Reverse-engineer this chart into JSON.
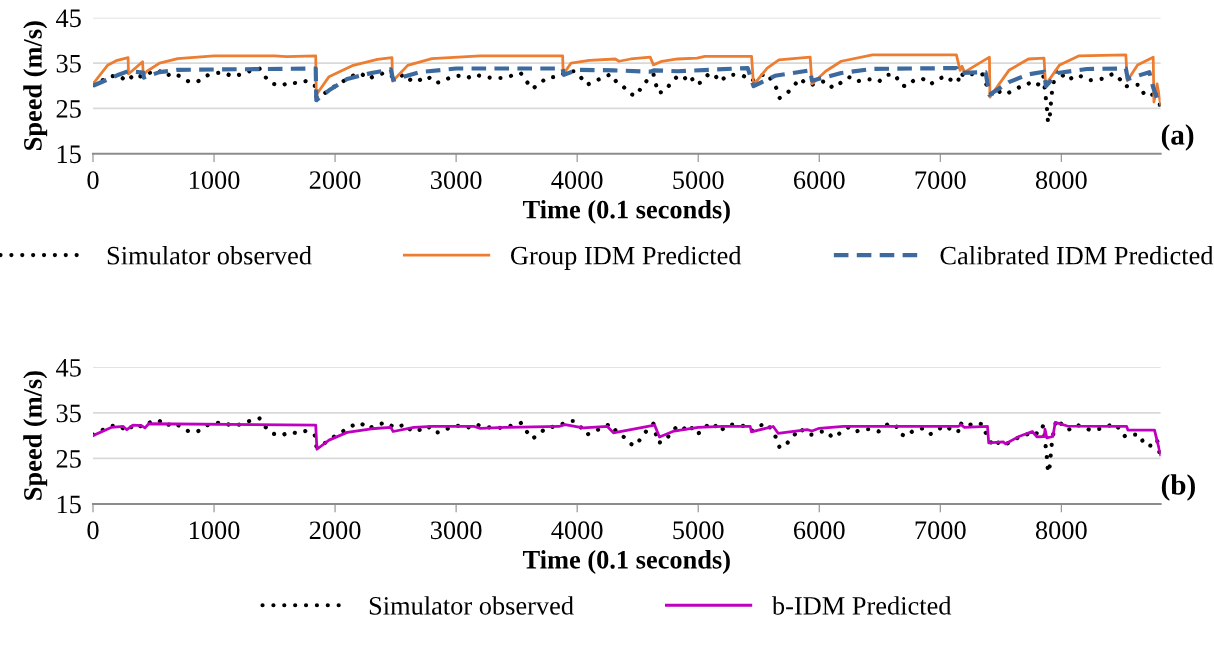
{
  "chart_data": [
    {
      "type": "line",
      "xlabel": "Time (0.1 seconds)",
      "ylabel": "Speed (m/s)",
      "xlim": [
        0,
        8820
      ],
      "xticks": [
        0,
        1000,
        2000,
        3000,
        4000,
        5000,
        6000,
        7000,
        8000
      ],
      "ylim": [
        15,
        45
      ],
      "yticks": [
        15,
        25,
        35,
        45
      ],
      "grid": "y",
      "legend": "bottom",
      "annotations": [
        "(a)"
      ],
      "series": [
        {
          "name": "Simulator observed",
          "color": "#000000",
          "line_style": "dotted",
          "x": [
            0,
            70,
            145,
            218,
            277,
            349,
            407,
            472,
            544,
            593,
            668,
            730,
            798,
            870,
            935,
            1016,
            1081,
            1147,
            1228,
            1300,
            1375,
            1417,
            1476,
            1554,
            1629,
            1691,
            1756,
            1831,
            1847,
            1912,
            1993,
            2068,
            2134,
            2212,
            2270,
            2342,
            2417,
            2498,
            2580,
            2635,
            2694,
            2765,
            2824,
            2889,
            2954,
            3029,
            3091,
            3160,
            3231,
            3319,
            3394,
            3469,
            3534,
            3583,
            3632,
            3691,
            3762,
            3834,
            3925,
            3980,
            4029,
            4078,
            4153,
            4225,
            4282,
            4330,
            4385,
            4437,
            4485,
            4533,
            4578,
            4630,
            4668,
            4726,
            4771,
            4829,
            4877,
            4932,
            4974,
            5021,
            5080,
            5128,
            5177,
            5248,
            5312,
            5377,
            5441,
            5499,
            5570,
            5650,
            5673,
            5737,
            5789,
            5844,
            5892,
            5940,
            6005,
            6060,
            6111,
            6175,
            6246,
            6304,
            6375,
            6433,
            6491,
            6562,
            6627,
            6665,
            6713,
            6778,
            6852,
            6917,
            6981,
            7045,
            7100,
            7148,
            7158,
            7213,
            7277,
            7348,
            7380,
            7438,
            7496,
            7551,
            7606,
            7657,
            7696,
            7760,
            7809,
            7851,
            7870,
            7880,
            7890,
            7905,
            7915,
            7925,
            7960,
            8002,
            8057,
            8121,
            8186,
            8237,
            8292,
            8356,
            8430,
            8485,
            8527,
            8582,
            8646,
            8688,
            8743,
            8791,
            8814
          ],
          "values": [
            30.2,
            31.1,
            32.1,
            32.2,
            31.0,
            32.6,
            31.9,
            32.9,
            33.4,
            32.1,
            32.8,
            31.9,
            30.8,
            31.0,
            32.2,
            32.8,
            32.9,
            32.1,
            32.5,
            33.3,
            33.8,
            32.1,
            30.5,
            30.0,
            30.8,
            30.5,
            31.0,
            30.2,
            27.4,
            28.3,
            29.8,
            31.0,
            32.1,
            32.8,
            31.5,
            32.3,
            32.9,
            31.7,
            32.5,
            30.9,
            31.2,
            32.1,
            30.6,
            30.9,
            31.9,
            32.2,
            31.7,
            32.5,
            31.9,
            31.7,
            31.7,
            32.3,
            32.8,
            30.9,
            29.3,
            30.6,
            31.9,
            31.9,
            33.2,
            33.2,
            31.9,
            30.2,
            31.0,
            32.1,
            32.5,
            30.6,
            29.7,
            28.2,
            27.8,
            29.7,
            31.2,
            32.6,
            28.4,
            28.8,
            30.5,
            32.1,
            31.4,
            32.4,
            30.3,
            30.7,
            32.4,
            32.7,
            30.9,
            32.4,
            32.4,
            32.1,
            31.0,
            32.1,
            32.7,
            29.3,
            27.3,
            28.4,
            30.0,
            31.6,
            30.3,
            30.2,
            30.8,
            31.0,
            29.5,
            30.6,
            31.9,
            30.9,
            31.4,
            31.4,
            30.9,
            32.4,
            32.5,
            30.5,
            29.8,
            31.1,
            31.6,
            30.3,
            31.4,
            32.2,
            31.0,
            30.8,
            32.9,
            31.9,
            32.8,
            32.5,
            30.3,
            27.6,
            28.8,
            28.2,
            29.1,
            29.7,
            29.9,
            31.0,
            30.3,
            32.2,
            27.8,
            25.4,
            21.9,
            23.4,
            26.5,
            29.3,
            33.6,
            32.5,
            31.2,
            32.4,
            31.9,
            31.2,
            31.4,
            31.6,
            32.7,
            31.4,
            29.8,
            30.2,
            30.2,
            27.9,
            27.8,
            29.1,
            25.8
          ]
        },
        {
          "name": "Group IDM Predicted",
          "color": "#ed7d31",
          "line_style": "solid",
          "x": [
            0,
            120,
            200,
            290,
            293,
            410,
            415,
            446,
            550,
            700,
            1000,
            1500,
            1600,
            1840,
            1845,
            1950,
            2150,
            2350,
            2470,
            2475,
            2600,
            2800,
            3200,
            3880,
            3885,
            3950,
            4100,
            4315,
            4346,
            4443,
            4604,
            4630,
            4700,
            4829,
            4990,
            5055,
            5441,
            5457,
            5570,
            5667,
            5925,
            5940,
            6053,
            6182,
            6440,
            7133,
            7164,
            7180,
            7200,
            7406,
            7410,
            7567,
            7728,
            7857,
            7870,
            7986,
            8147,
            8533,
            8545,
            8630,
            8759,
            8765,
            8791,
            8820
          ],
          "values": [
            30.4,
            34.5,
            35.6,
            36.2,
            32.6,
            35.3,
            32.4,
            33.2,
            35.0,
            36.0,
            36.6,
            36.6,
            36.4,
            36.6,
            28.0,
            32.0,
            34.5,
            35.8,
            36.2,
            31.0,
            34.5,
            36.0,
            36.6,
            36.6,
            32.5,
            35.0,
            35.6,
            35.9,
            35.4,
            35.9,
            36.3,
            34.6,
            35.4,
            35.9,
            36.1,
            36.5,
            36.5,
            30.2,
            33.9,
            35.7,
            36.3,
            30.4,
            33.2,
            35.4,
            36.8,
            36.8,
            33.4,
            34.3,
            33.0,
            36.3,
            27.5,
            33.4,
            35.9,
            36.1,
            30.2,
            34.6,
            36.6,
            36.8,
            31.1,
            34.6,
            36.3,
            26.4,
            30.4,
            26.0
          ]
        },
        {
          "name": "Calibrated IDM Predicted",
          "color": "#3d6a9e",
          "line_style": "dashed",
          "x": [
            0,
            200,
            290,
            415,
            420,
            550,
            700,
            1840,
            1845,
            1950,
            2100,
            2300,
            2460,
            2480,
            2700,
            3000,
            3880,
            3890,
            4000,
            4300,
            4604,
            4636,
            4829,
            5409,
            5457,
            5635,
            5925,
            5940,
            6182,
            6440,
            7133,
            7148,
            7374,
            7406,
            7567,
            7728,
            7857,
            7873,
            7970,
            8211,
            8533,
            8549,
            8727,
            8759,
            8814
          ],
          "values": [
            30.0,
            32.3,
            33.2,
            32.9,
            31.8,
            33.0,
            33.5,
            33.8,
            26.8,
            29.0,
            31.5,
            32.8,
            33.6,
            31.3,
            33.0,
            33.8,
            33.8,
            32.4,
            33.5,
            33.4,
            33.1,
            33.4,
            33.2,
            33.9,
            29.9,
            32.2,
            33.4,
            31.1,
            32.8,
            33.7,
            33.9,
            32.8,
            33.0,
            28.0,
            30.8,
            32.5,
            33.1,
            29.9,
            32.8,
            33.7,
            33.8,
            31.5,
            33.0,
            29.6,
            25.5
          ]
        }
      ]
    },
    {
      "type": "line",
      "xlabel": "Time (0.1 seconds)",
      "ylabel": "Speed (m/s)",
      "xlim": [
        0,
        8820
      ],
      "xticks": [
        0,
        1000,
        2000,
        3000,
        4000,
        5000,
        6000,
        7000,
        8000
      ],
      "ylim": [
        15,
        45
      ],
      "yticks": [
        15,
        25,
        35,
        45
      ],
      "grid": "y",
      "legend": "bottom",
      "annotations": [
        "(b)"
      ],
      "series": [
        {
          "name": "Simulator observed",
          "color": "#000000",
          "line_style": "dotted",
          "x": [
            0,
            70,
            145,
            218,
            277,
            349,
            407,
            472,
            544,
            593,
            668,
            730,
            798,
            870,
            935,
            1016,
            1081,
            1147,
            1228,
            1300,
            1375,
            1417,
            1476,
            1554,
            1629,
            1691,
            1756,
            1831,
            1847,
            1912,
            1993,
            2068,
            2134,
            2212,
            2270,
            2342,
            2417,
            2498,
            2580,
            2635,
            2694,
            2765,
            2824,
            2889,
            2954,
            3029,
            3091,
            3160,
            3231,
            3319,
            3394,
            3469,
            3534,
            3583,
            3632,
            3691,
            3762,
            3834,
            3925,
            3980,
            4029,
            4078,
            4153,
            4225,
            4282,
            4330,
            4385,
            4437,
            4485,
            4533,
            4578,
            4630,
            4668,
            4726,
            4771,
            4829,
            4877,
            4932,
            4974,
            5021,
            5080,
            5128,
            5177,
            5248,
            5312,
            5377,
            5441,
            5499,
            5570,
            5650,
            5673,
            5737,
            5789,
            5844,
            5892,
            5940,
            6005,
            6060,
            6111,
            6175,
            6246,
            6304,
            6375,
            6433,
            6491,
            6562,
            6627,
            6665,
            6713,
            6778,
            6852,
            6917,
            6981,
            7045,
            7100,
            7148,
            7158,
            7213,
            7277,
            7348,
            7380,
            7438,
            7496,
            7551,
            7606,
            7657,
            7696,
            7760,
            7809,
            7851,
            7870,
            7880,
            7890,
            7905,
            7915,
            7925,
            7960,
            8002,
            8057,
            8121,
            8186,
            8237,
            8292,
            8356,
            8430,
            8485,
            8527,
            8582,
            8646,
            8688,
            8743,
            8791,
            8814
          ],
          "values": [
            30.2,
            31.1,
            32.1,
            32.2,
            31.0,
            32.6,
            31.9,
            32.9,
            33.4,
            32.1,
            32.8,
            31.9,
            30.8,
            31.0,
            32.2,
            32.8,
            32.9,
            32.1,
            32.5,
            33.3,
            33.8,
            32.1,
            30.5,
            30.0,
            30.8,
            30.5,
            31.0,
            30.2,
            27.4,
            28.3,
            29.8,
            31.0,
            32.1,
            32.8,
            31.5,
            32.3,
            32.9,
            31.7,
            32.5,
            30.9,
            31.2,
            32.1,
            30.6,
            30.9,
            31.9,
            32.2,
            31.7,
            32.5,
            31.9,
            31.7,
            31.7,
            32.3,
            32.8,
            30.9,
            29.3,
            30.6,
            31.9,
            31.9,
            33.2,
            33.2,
            31.9,
            30.2,
            31.0,
            32.1,
            32.5,
            30.6,
            29.7,
            28.2,
            27.8,
            29.7,
            31.2,
            32.6,
            28.4,
            28.8,
            30.5,
            32.1,
            31.4,
            32.4,
            30.3,
            30.7,
            32.4,
            32.7,
            30.9,
            32.4,
            32.4,
            32.1,
            31.0,
            32.1,
            32.7,
            29.3,
            27.3,
            28.4,
            30.0,
            31.6,
            30.3,
            30.2,
            30.8,
            31.0,
            29.5,
            30.6,
            31.9,
            30.9,
            31.4,
            31.4,
            30.9,
            32.4,
            32.5,
            30.5,
            29.8,
            31.1,
            31.6,
            30.3,
            31.4,
            32.2,
            31.0,
            30.8,
            32.9,
            31.9,
            32.8,
            32.5,
            30.3,
            27.6,
            28.8,
            28.2,
            29.1,
            29.7,
            29.9,
            31.0,
            30.3,
            32.2,
            27.8,
            25.4,
            21.9,
            23.4,
            26.5,
            29.3,
            33.6,
            32.5,
            31.2,
            32.4,
            31.9,
            31.2,
            31.4,
            31.6,
            32.7,
            31.4,
            29.8,
            30.2,
            30.2,
            27.9,
            27.8,
            29.1,
            25.8
          ]
        },
        {
          "name": "b-IDM Predicted",
          "color": "#c000c0",
          "line_style": "solid",
          "x": [
            0,
            150,
            250,
            280,
            330,
            400,
            430,
            460,
            1840,
            1850,
            1950,
            2100,
            2300,
            2460,
            2480,
            2650,
            2800,
            3150,
            3200,
            3400,
            3850,
            3900,
            4050,
            4250,
            4300,
            4640,
            4680,
            4800,
            5000,
            5200,
            5430,
            5440,
            5620,
            5660,
            5900,
            5940,
            6000,
            6200,
            7150,
            7170,
            7200,
            7390,
            7400,
            7520,
            7540,
            7650,
            7760,
            7800,
            7860,
            7865,
            7880,
            7930,
            7950,
            8050,
            8540,
            8550,
            8770,
            8790,
            8820
          ],
          "values": [
            30.0,
            31.8,
            32.0,
            31.3,
            32.3,
            32.2,
            31.7,
            32.6,
            32.3,
            27.0,
            29.0,
            30.7,
            31.5,
            31.8,
            30.9,
            31.8,
            32.0,
            32.0,
            31.6,
            31.8,
            32.0,
            32.4,
            31.7,
            32.0,
            30.6,
            32.3,
            29.7,
            31.0,
            31.8,
            32.0,
            32.0,
            30.8,
            32.0,
            30.5,
            31.3,
            31.0,
            31.6,
            32.0,
            32.0,
            32.4,
            31.8,
            32.0,
            28.4,
            28.6,
            28.2,
            29.8,
            30.9,
            29.7,
            29.8,
            31.4,
            29.5,
            29.8,
            32.9,
            32.1,
            32.0,
            31.2,
            31.2,
            29.0,
            25.8
          ]
        }
      ]
    }
  ]
}
